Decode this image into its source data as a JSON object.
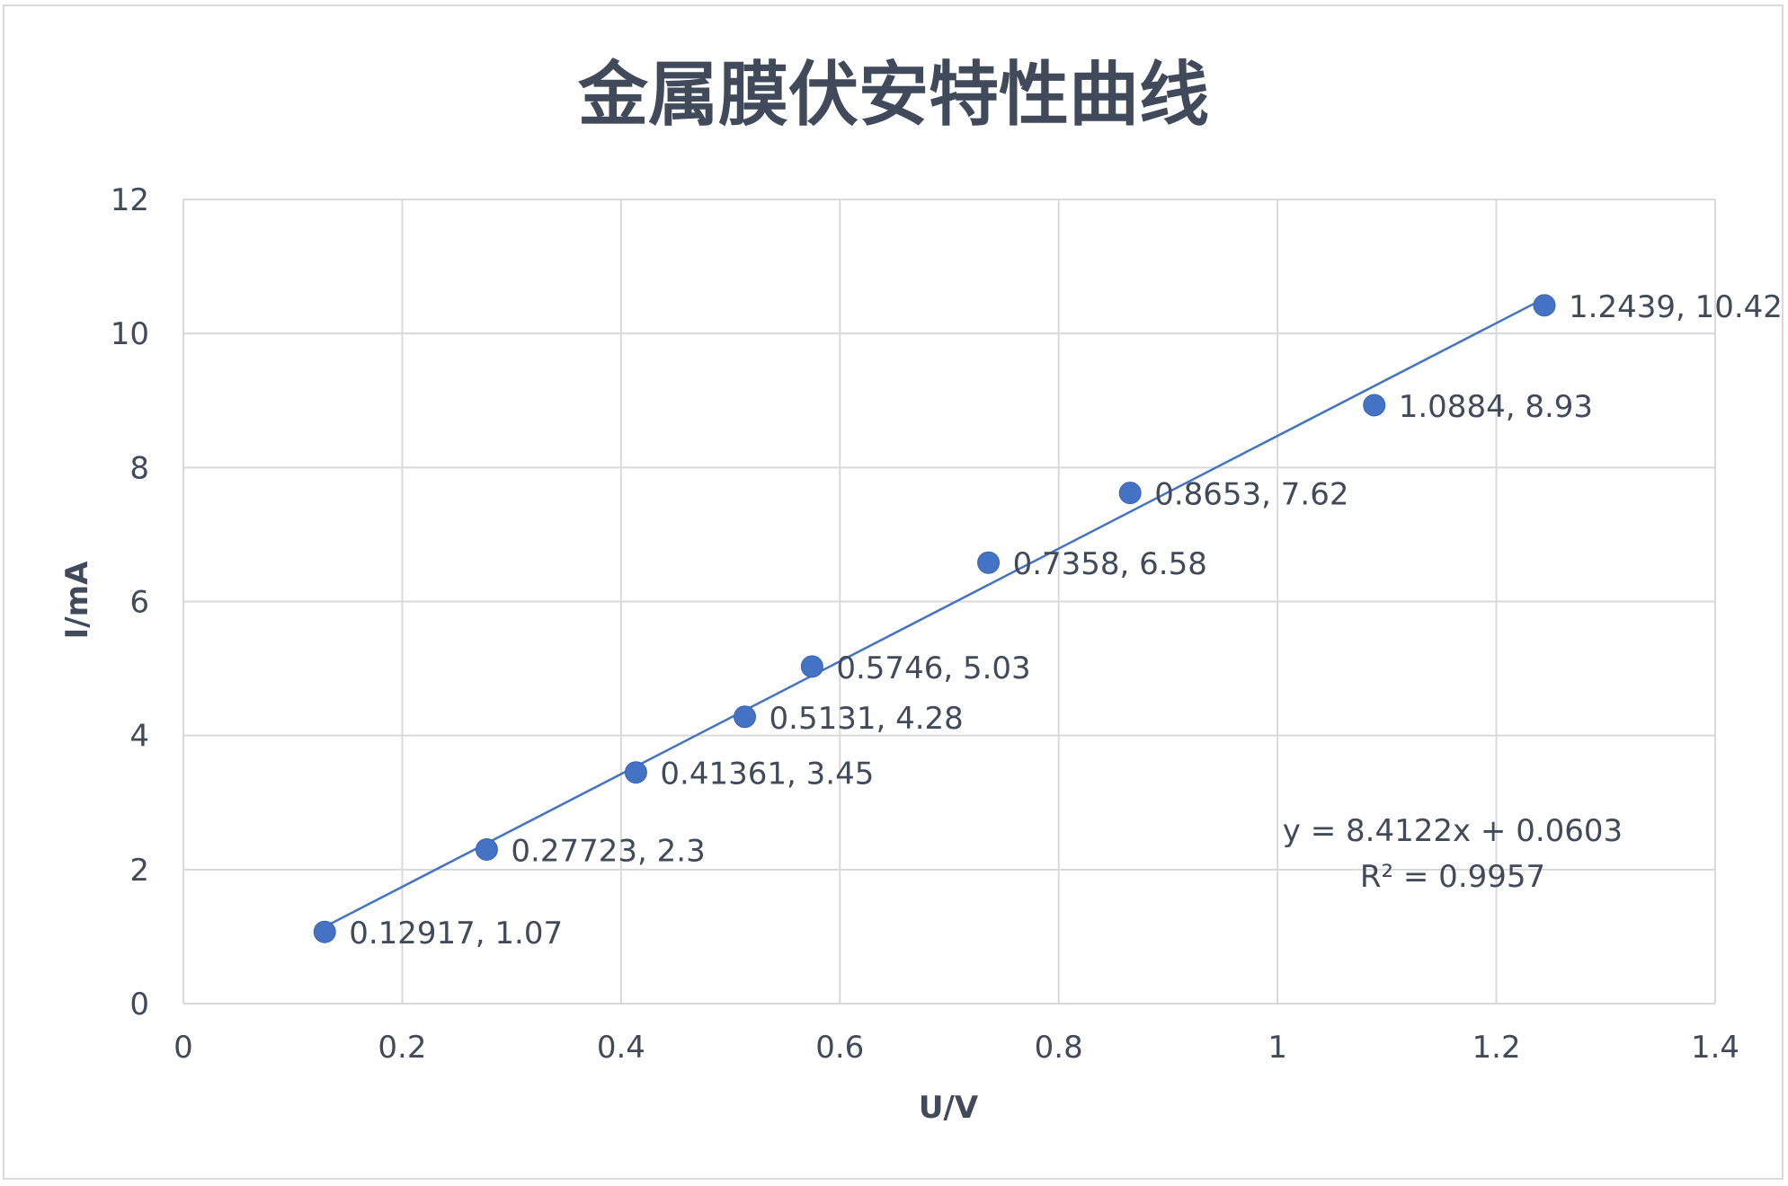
{
  "chart_data": {
    "type": "scatter",
    "title": "金属膜伏安特性曲线",
    "xlabel": "U/V",
    "ylabel": "I/mA",
    "xlim": [
      0,
      1.4
    ],
    "ylim": [
      0,
      12
    ],
    "xticks": [
      "0",
      "0.2",
      "0.4",
      "0.6",
      "0.8",
      "1",
      "1.2",
      "1.4"
    ],
    "xtick_values": [
      0,
      0.2,
      0.4,
      0.6,
      0.8,
      1,
      1.2,
      1.4
    ],
    "yticks": [
      "0",
      "2",
      "4",
      "6",
      "8",
      "10",
      "12"
    ],
    "ytick_values": [
      0,
      2,
      4,
      6,
      8,
      10,
      12
    ],
    "grid": true,
    "points": [
      {
        "x": 0.12917,
        "y": 1.07,
        "label": "0.12917, 1.07"
      },
      {
        "x": 0.27723,
        "y": 2.3,
        "label": "0.27723, 2.3"
      },
      {
        "x": 0.41361,
        "y": 3.45,
        "label": "0.41361, 3.45"
      },
      {
        "x": 0.5131,
        "y": 4.28,
        "label": "0.5131, 4.28"
      },
      {
        "x": 0.5746,
        "y": 5.03,
        "label": "0.5746, 5.03"
      },
      {
        "x": 0.7358,
        "y": 6.58,
        "label": "0.7358, 6.58"
      },
      {
        "x": 0.8653,
        "y": 7.62,
        "label": "0.8653, 7.62"
      },
      {
        "x": 1.0884,
        "y": 8.93,
        "label": "1.0884, 8.93"
      },
      {
        "x": 1.2439,
        "y": 10.42,
        "label": "1.2439, 10.42"
      }
    ],
    "trendline": {
      "type": "linear",
      "slope": 8.4122,
      "intercept": 0.0603,
      "equation": "y = 8.4122x + 0.0603",
      "r_squared": "R² = 0.9957"
    },
    "colors": {
      "marker": "#4472c4",
      "trendline": "#4472c4",
      "grid": "#d9d9d9",
      "text": "#404a5a"
    }
  }
}
